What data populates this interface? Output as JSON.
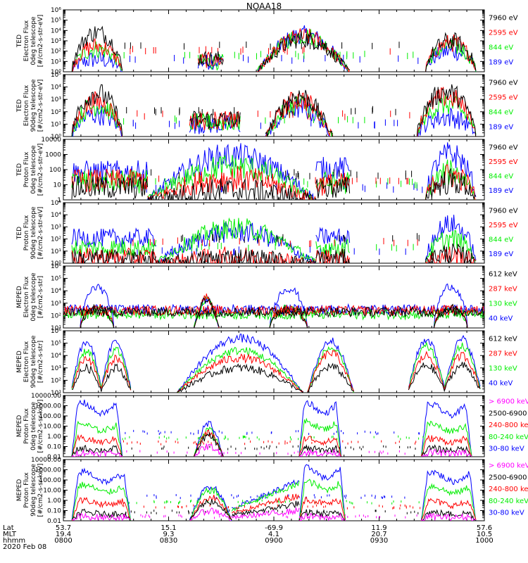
{
  "title": "NOAA18",
  "colors": {
    "black": "#000000",
    "red": "#ff0000",
    "green": "#00ee00",
    "blue": "#0000ff",
    "magenta": "#ff00ff"
  },
  "chart_data": {
    "type": "line",
    "x_axis": {
      "xlim": [
        "08:00",
        "10:00"
      ],
      "row_labels": [
        "Lat",
        "MLT",
        "hhmm"
      ],
      "ticks": [
        {
          "Lat": "53.7",
          "MLT": "19.4",
          "hhmm": "0800"
        },
        {
          "Lat": "15.1",
          "MLT": "9.3",
          "hhmm": "0830"
        },
        {
          "Lat": "-69.9",
          "MLT": "4.1",
          "hhmm": "0900"
        },
        {
          "Lat": "11.9",
          "MLT": "20.7",
          "hhmm": "0930"
        },
        {
          "Lat": "57.6",
          "MLT": "10.5",
          "hhmm": "1000"
        }
      ],
      "date": "2020 Feb 08"
    },
    "panels": [
      {
        "ylabel": [
          "TED",
          "Electron Flux",
          "0deg telescope",
          "[#/cm2-s-str-eV]"
        ],
        "yscale": "log",
        "ylim_exp": [
          0,
          6
        ],
        "yticks": [
          "10⁰",
          "10¹",
          "10²",
          "10³",
          "10⁴",
          "10⁵",
          "10⁶"
        ],
        "legend": [
          {
            "label": "7960 eV",
            "color": "black"
          },
          {
            "label": "2595 eV",
            "color": "red"
          },
          {
            "label": "844 eV",
            "color": "green"
          },
          {
            "label": "189 eV",
            "color": "blue"
          }
        ],
        "regions": [
          {
            "x": [
              0.02,
              0.14
            ],
            "levels": [
              3.8,
              2.5,
              2.2,
              1.2
            ],
            "style": "peak"
          },
          {
            "x": [
              0.32,
              0.38
            ],
            "levels": [
              1.6,
              1.4,
              1.2,
              1.2
            ],
            "style": "flat"
          },
          {
            "x": [
              0.46,
              0.68
            ],
            "levels": [
              3.2,
              3.4,
              3.5,
              3.6
            ],
            "style": "dome"
          },
          {
            "x": [
              0.86,
              0.98
            ],
            "levels": [
              3.0,
              2.8,
              2.5,
              2.0
            ],
            "style": "peak"
          }
        ]
      },
      {
        "ylabel": [
          "TED",
          "Electron Flux",
          "90deg telescope",
          "[#/cm2-s-str-eV]"
        ],
        "yscale": "log",
        "ylim_exp": [
          0,
          5
        ],
        "yticks": [
          "10⁰",
          "10¹",
          "10²",
          "10³",
          "10⁴",
          "10⁵"
        ],
        "legend": [
          {
            "label": "7960 eV",
            "color": "black"
          },
          {
            "label": "2595 eV",
            "color": "red"
          },
          {
            "label": "844 eV",
            "color": "green"
          },
          {
            "label": "189 eV",
            "color": "blue"
          }
        ],
        "regions": [
          {
            "x": [
              0.02,
              0.14
            ],
            "levels": [
              3.5,
              2.8,
              2.5,
              1.8
            ],
            "style": "peak"
          },
          {
            "x": [
              0.3,
              0.42
            ],
            "levels": [
              1.7,
              1.6,
              1.4,
              1.2
            ],
            "style": "flat"
          },
          {
            "x": [
              0.48,
              0.64
            ],
            "levels": [
              3.3,
              3.0,
              2.6,
              2.3
            ],
            "style": "dome"
          },
          {
            "x": [
              0.84,
              0.98
            ],
            "levels": [
              3.6,
              3.2,
              2.6,
              1.6
            ],
            "style": "peak"
          }
        ]
      },
      {
        "ylabel": [
          "TED",
          "Proton Flux",
          "0deg telescope",
          "[#/cm2-s-str-eV]"
        ],
        "yscale": "log",
        "ylim_exp": [
          0,
          4
        ],
        "yticks": [
          "1",
          "10",
          "100",
          "1000",
          "10000"
        ],
        "legend": [
          {
            "label": "7960 eV",
            "color": "black"
          },
          {
            "label": "2595 eV",
            "color": "red"
          },
          {
            "label": "844 eV",
            "color": "green"
          },
          {
            "label": "189 eV",
            "color": "blue"
          }
        ],
        "regions": [
          {
            "x": [
              0.02,
              0.2
            ],
            "levels": [
              1.0,
              1.6,
              1.5,
              2.3
            ],
            "style": "noisy"
          },
          {
            "x": [
              0.2,
              0.6
            ],
            "levels": [
              0.6,
              1.4,
              2.2,
              2.9
            ],
            "style": "dome"
          },
          {
            "x": [
              0.6,
              0.68
            ],
            "levels": [
              1.0,
              1.3,
              1.4,
              2.6
            ],
            "style": "noisy"
          },
          {
            "x": [
              0.86,
              0.98
            ],
            "levels": [
              1.2,
              1.6,
              1.8,
              3.0
            ],
            "style": "peak"
          }
        ]
      },
      {
        "ylabel": [
          "TED",
          "Proton Flux",
          "90deg telescope",
          "[#/cm2-s-str-eV]"
        ],
        "yscale": "log",
        "ylim_exp": [
          0,
          5
        ],
        "yticks": [
          "10⁰",
          "10¹",
          "10²",
          "10³",
          "10⁴",
          "10⁵"
        ],
        "legend": [
          {
            "label": "7960 eV",
            "color": "black"
          },
          {
            "label": "2595 eV",
            "color": "red"
          },
          {
            "label": "844 eV",
            "color": "green"
          },
          {
            "label": "189 eV",
            "color": "blue"
          }
        ],
        "regions": [
          {
            "x": [
              0.02,
              0.22
            ],
            "levels": [
              0.5,
              0.6,
              1.6,
              2.6
            ],
            "style": "noisy"
          },
          {
            "x": [
              0.22,
              0.6
            ],
            "levels": [
              0.4,
              0.5,
              2.9,
              2.6
            ],
            "style": "dome"
          },
          {
            "x": [
              0.6,
              0.68
            ],
            "levels": [
              0.5,
              0.6,
              1.6,
              2.7
            ],
            "style": "noisy"
          },
          {
            "x": [
              0.86,
              0.98
            ],
            "levels": [
              0.8,
              0.6,
              2.0,
              3.2
            ],
            "style": "peak"
          }
        ]
      },
      {
        "ylabel": [
          "MEPED",
          "Electron Flux",
          "0deg telescope",
          "[#/cm2-s-str]"
        ],
        "yscale": "log",
        "ylim_exp": [
          1,
          6
        ],
        "yticks": [
          "10¹",
          "10²",
          "10³",
          "10⁴",
          "10⁵",
          "10⁶"
        ],
        "legend": [
          {
            "label": "612 keV",
            "color": "black"
          },
          {
            "label": "287 keV",
            "color": "red"
          },
          {
            "label": "130 keV",
            "color": "green"
          },
          {
            "label": "40 keV",
            "color": "blue"
          }
        ],
        "regions": [
          {
            "x": [
              0.0,
              1.0
            ],
            "levels": [
              2.3,
              2.4,
              2.1,
              2.5
            ],
            "style": "floor"
          },
          {
            "x": [
              0.31,
              0.37
            ],
            "levels": [
              3.3,
              3.5,
              3.2,
              3.3
            ],
            "style": "dome"
          },
          {
            "x": [
              0.04,
              0.12
            ],
            "levels": [
              2.6,
              2.7,
              2.5,
              4.3
            ],
            "style": "peak"
          },
          {
            "x": [
              0.49,
              0.58
            ],
            "levels": [
              2.5,
              2.6,
              2.6,
              4.2
            ],
            "style": "peak"
          },
          {
            "x": [
              0.88,
              0.96
            ],
            "levels": [
              2.6,
              2.7,
              2.5,
              4.4
            ],
            "style": "peak"
          }
        ]
      },
      {
        "ylabel": [
          "MEPED",
          "Electron Flux",
          "90deg telescope",
          "[#/cm2-s-str]"
        ],
        "yscale": "log",
        "ylim_exp": [
          1,
          6
        ],
        "yticks": [
          "10¹",
          "10²",
          "10³",
          "10⁴",
          "10⁵",
          "10⁶"
        ],
        "legend": [
          {
            "label": "612 keV",
            "color": "black"
          },
          {
            "label": "287 keV",
            "color": "red"
          },
          {
            "label": "130 keV",
            "color": "green"
          },
          {
            "label": "40 keV",
            "color": "blue"
          }
        ],
        "regions": [
          {
            "x": [
              0.02,
              0.16
            ],
            "levels": [
              3.0,
              3.8,
              4.4,
              5.1
            ],
            "style": "twin"
          },
          {
            "x": [
              0.27,
              0.57
            ],
            "levels": [
              3.0,
              3.8,
              4.4,
              5.4
            ],
            "style": "dome"
          },
          {
            "x": [
              0.58,
              0.69
            ],
            "levels": [
              3.1,
              4.2,
              4.6,
              5.2
            ],
            "style": "dome"
          },
          {
            "x": [
              0.82,
              0.99
            ],
            "levels": [
              3.2,
              4.0,
              4.7,
              5.3
            ],
            "style": "twin"
          }
        ]
      },
      {
        "ylabel": [
          "MEPED",
          "Proton Flux",
          "0deg telescope",
          "[#/cm2-s-sr-keV]"
        ],
        "yscale": "log",
        "ylim_exp": [
          -2,
          4
        ],
        "yticks": [
          "0.01",
          "0.10",
          "1.00",
          "10.00",
          "100.00",
          "1000.00",
          "10000.00"
        ],
        "legend": [
          {
            "label": "> 6900 keV",
            "color": "magenta"
          },
          {
            "label": "2500-6900",
            "color": "black"
          },
          {
            "label": "240-800 keV",
            "color": "red"
          },
          {
            "label": "80-240 keV",
            "color": "green"
          },
          {
            "label": "30-80 keV",
            "color": "blue"
          }
        ],
        "regions": [
          {
            "x": [
              0.02,
              0.14
            ],
            "levels": [
              -1.6,
              -1.2,
              -0.2,
              1.2,
              3.3
            ],
            "style": "plateau"
          },
          {
            "x": [
              0.31,
              0.38
            ],
            "levels": [
              -1.0,
              0.0,
              0.3,
              0.6,
              1.2
            ],
            "style": "dome"
          },
          {
            "x": [
              0.56,
              0.66
            ],
            "levels": [
              -1.6,
              -1.2,
              -0.2,
              1.4,
              3.3
            ],
            "style": "plateau"
          },
          {
            "x": [
              0.85,
              0.97
            ],
            "levels": [
              -1.6,
              -1.2,
              -0.2,
              1.2,
              3.1
            ],
            "style": "plateau"
          }
        ]
      },
      {
        "ylabel": [
          "MEPED",
          "Proton Flux",
          "90deg telescope",
          "[#/cm2-s-sr-keV]"
        ],
        "yscale": "log",
        "ylim_exp": [
          -2,
          4
        ],
        "yticks": [
          "0.01",
          "0.10",
          "1.00",
          "10.00",
          "100.00",
          "1000.00",
          "10000.00"
        ],
        "legend": [
          {
            "label": "> 6900 keV",
            "color": "magenta"
          },
          {
            "label": "2500-6900",
            "color": "black"
          },
          {
            "label": "240-800 keV",
            "color": "red"
          },
          {
            "label": "80-240 keV",
            "color": "green"
          },
          {
            "label": "30-80 keV",
            "color": "blue"
          }
        ],
        "regions": [
          {
            "x": [
              0.02,
              0.16
            ],
            "levels": [
              -1.6,
              -1.2,
              0.0,
              1.5,
              2.8
            ],
            "style": "plateau"
          },
          {
            "x": [
              0.3,
              0.4
            ],
            "levels": [
              -1.0,
              -0.1,
              0.3,
              1.0,
              1.4
            ],
            "style": "dome"
          },
          {
            "x": [
              0.4,
              0.56
            ],
            "levels": [
              -1.0,
              -0.3,
              0.5,
              1.6,
              1.9
            ],
            "style": "ramp"
          },
          {
            "x": [
              0.56,
              0.67
            ],
            "levels": [
              -1.6,
              -1.2,
              0.1,
              1.8,
              3.2
            ],
            "style": "plateau"
          },
          {
            "x": [
              0.85,
              0.98
            ],
            "levels": [
              -1.6,
              -1.2,
              -0.1,
              1.4,
              2.8
            ],
            "style": "plateau"
          }
        ]
      }
    ]
  }
}
